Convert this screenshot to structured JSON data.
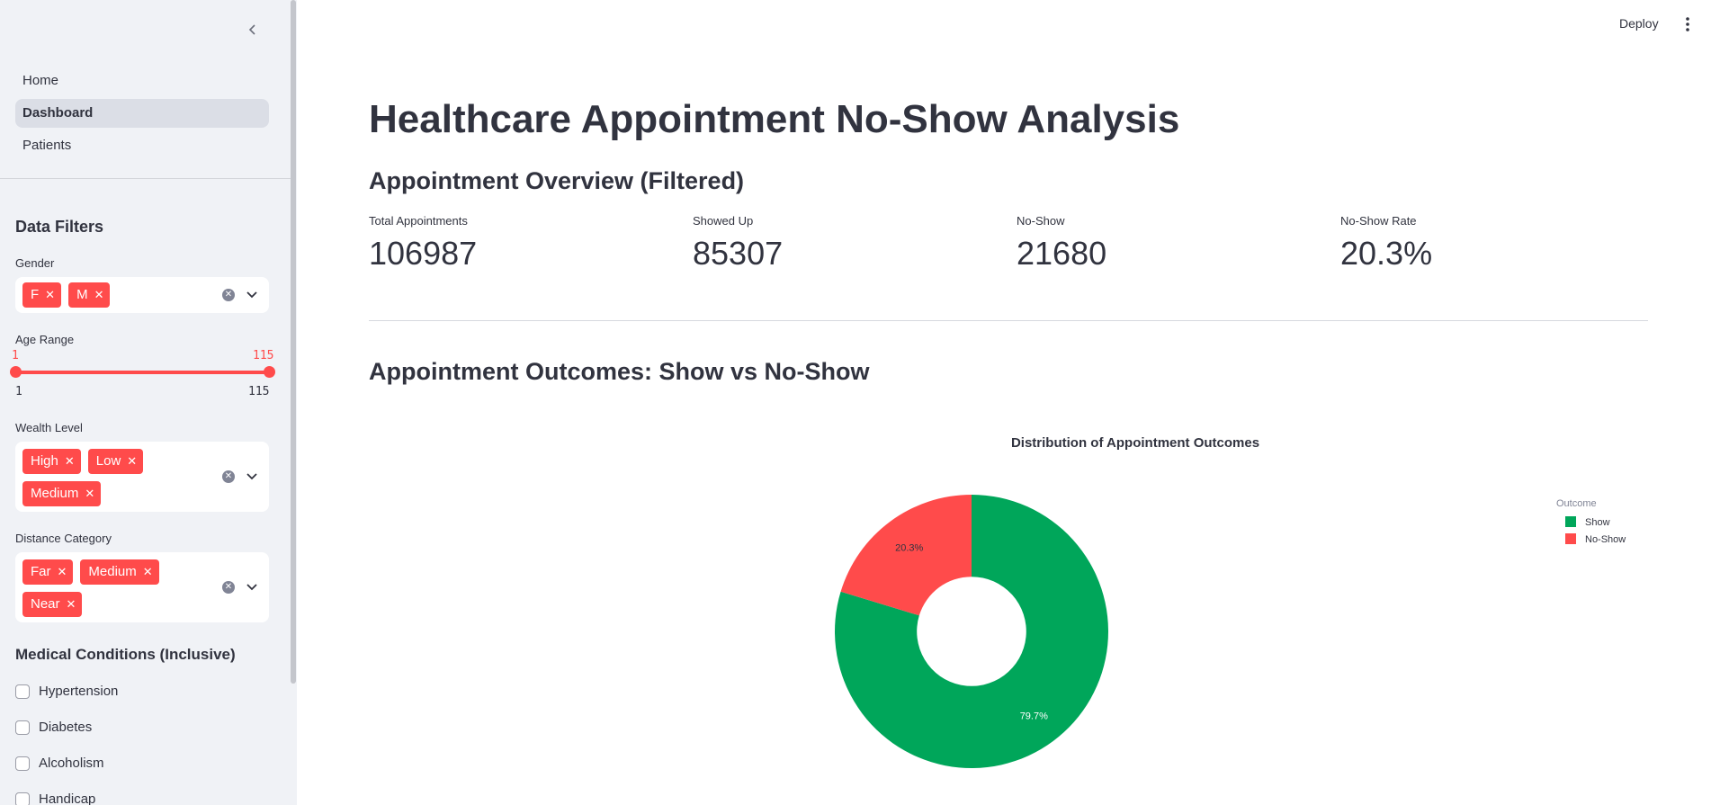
{
  "sidebar": {
    "nav": [
      {
        "label": "Home",
        "active": false
      },
      {
        "label": "Dashboard",
        "active": true
      },
      {
        "label": "Patients",
        "active": false
      }
    ],
    "filters_heading": "Data Filters",
    "gender": {
      "label": "Gender",
      "tags": [
        "F",
        "M"
      ]
    },
    "age": {
      "label": "Age Range",
      "low": "1",
      "high": "115",
      "min": "1",
      "max": "115"
    },
    "wealth": {
      "label": "Wealth Level",
      "tags": [
        "High",
        "Low",
        "Medium"
      ]
    },
    "distance": {
      "label": "Distance Category",
      "tags": [
        "Far",
        "Medium",
        "Near"
      ]
    },
    "conditions_heading": "Medical Conditions (Inclusive)",
    "conditions": [
      "Hypertension",
      "Diabetes",
      "Alcoholism",
      "Handicap"
    ]
  },
  "header": {
    "deploy_label": "Deploy"
  },
  "main": {
    "title": "Healthcare Appointment No-Show Analysis",
    "overview_heading": "Appointment Overview (Filtered)",
    "metrics": [
      {
        "label": "Total Appointments",
        "value": "106987"
      },
      {
        "label": "Showed Up",
        "value": "85307"
      },
      {
        "label": "No-Show",
        "value": "21680"
      },
      {
        "label": "No-Show Rate",
        "value": "20.3%"
      }
    ],
    "outcomes_heading": "Appointment Outcomes: Show vs No-Show"
  },
  "colors": {
    "accent": "#ff4b4b",
    "show": "#00a65a",
    "no_show": "#ff4b4b"
  },
  "chart_data": {
    "type": "pie",
    "title": "Distribution of Appointment Outcomes",
    "hole": 0.4,
    "legend_title": "Outcome",
    "legend_position": "top-right",
    "slices": [
      {
        "name": "Show",
        "value": 79.7,
        "label": "79.7%",
        "color": "#00a65a"
      },
      {
        "name": "No-Show",
        "value": 20.3,
        "label": "20.3%",
        "color": "#ff4b4b"
      }
    ]
  }
}
